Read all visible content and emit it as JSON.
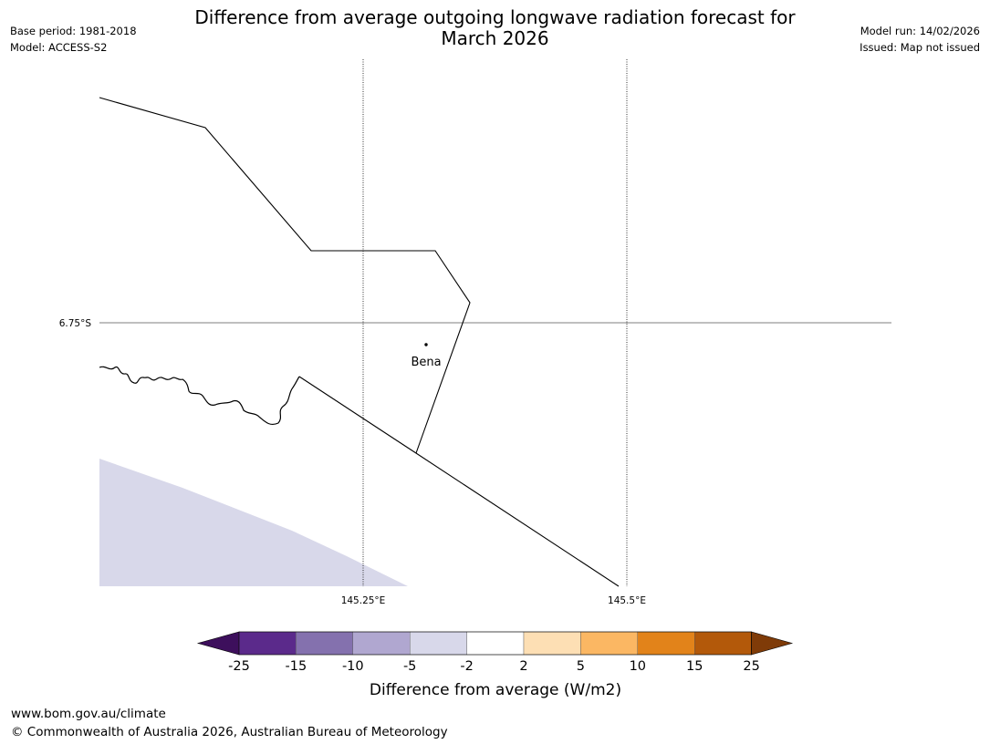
{
  "header": {
    "title_line1": "Difference from average outgoing longwave radiation forecast for",
    "title_line2": "March 2026",
    "base_period": "Base period: 1981-2018",
    "model": "Model: ACCESS-S2",
    "model_run": "Model run: 14/02/2026",
    "issued": "Issued: Map not issued"
  },
  "map": {
    "lat_label": "6.75°S",
    "lon_labels": [
      "145.25°E",
      "145.5°E"
    ],
    "place_name": "Bena",
    "shaded_category": "-5 to -2"
  },
  "colorbar": {
    "label": "Difference from average (W/m2)",
    "ticks": [
      "-25",
      "-15",
      "-10",
      "-5",
      "-2",
      "2",
      "5",
      "10",
      "15",
      "25"
    ],
    "colors": [
      "#3d0f5c",
      "#5b2a8b",
      "#8471ae",
      "#b0a7d0",
      "#d8d8ea",
      "#ffffff",
      "#fddfb4",
      "#fbb763",
      "#e2831a",
      "#b3590a",
      "#7f3b08"
    ]
  },
  "footer": {
    "url": "www.bom.gov.au/climate",
    "copyright": "© Commonwealth of Australia 2026, Australian Bureau of Meteorology"
  }
}
